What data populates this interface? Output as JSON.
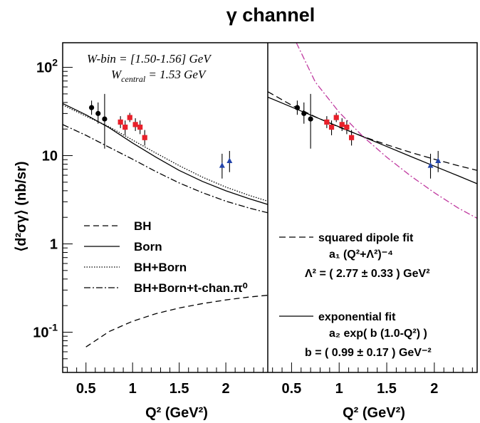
{
  "chart_data": {
    "type": "scatter",
    "title": "γ channel",
    "ylabel": "⟨d²σγ⟩ (nb/sr)",
    "xlabel": "Q² (GeV²)",
    "yscale": "log",
    "xlim": [
      0.25,
      2.45
    ],
    "ylim": [
      0.035,
      190
    ],
    "x_ticks": [
      "0.5",
      "1",
      "1.5",
      "2"
    ],
    "y_ticks": [
      "10⁻¹",
      "1",
      "10",
      "10²"
    ],
    "annotation": {
      "wbin": "W-bin = [1.50-1.56] GeV",
      "wcentral_prefix": "W",
      "wcentral_sub": "central",
      "wcentral_value": " = 1.53 GeV"
    },
    "data_series": [
      {
        "marker": "circle",
        "color": "#000000",
        "points": [
          {
            "x": 0.56,
            "y": 35,
            "lo": 29,
            "hi": 42
          },
          {
            "x": 0.63,
            "y": 30,
            "lo": 23,
            "hi": 40
          },
          {
            "x": 0.7,
            "y": 26,
            "lo": 12,
            "hi": 50
          }
        ]
      },
      {
        "marker": "square",
        "color": "#e8202a",
        "points": [
          {
            "x": 0.87,
            "y": 24,
            "lo": 20.5,
            "hi": 28
          },
          {
            "x": 0.92,
            "y": 21,
            "lo": 17,
            "hi": 25
          },
          {
            "x": 0.97,
            "y": 27,
            "lo": 24,
            "hi": 30.5
          },
          {
            "x": 1.03,
            "y": 22.5,
            "lo": 19,
            "hi": 26.5
          },
          {
            "x": 1.08,
            "y": 21,
            "lo": 17.5,
            "hi": 25
          },
          {
            "x": 1.13,
            "y": 16,
            "lo": 13,
            "hi": 19.5
          }
        ]
      },
      {
        "marker": "triangle",
        "color": "#2244aa",
        "points": [
          {
            "x": 1.96,
            "y": 7.7,
            "lo": 5.5,
            "hi": 10.5
          },
          {
            "x": 2.04,
            "y": 8.7,
            "lo": 6.5,
            "hi": 11.3
          }
        ]
      }
    ],
    "left_panel": {
      "curves": [
        {
          "name": "BH",
          "dash": "8,5",
          "points": [
            [
              0.5,
              0.068
            ],
            [
              0.75,
              0.102
            ],
            [
              1.0,
              0.133
            ],
            [
              1.25,
              0.162
            ],
            [
              1.5,
              0.188
            ],
            [
              1.75,
              0.211
            ],
            [
              2.0,
              0.232
            ],
            [
              2.25,
              0.25
            ],
            [
              2.45,
              0.262
            ]
          ]
        },
        {
          "name": "Born",
          "dash": "",
          "points": [
            [
              0.25,
              39
            ],
            [
              0.5,
              29
            ],
            [
              0.75,
              20.7
            ],
            [
              1.0,
              13.9
            ],
            [
              1.25,
              9.6
            ],
            [
              1.5,
              6.8
            ],
            [
              1.75,
              5.1
            ],
            [
              2.0,
              4.0
            ],
            [
              2.25,
              3.25
            ],
            [
              2.45,
              2.8
            ]
          ]
        },
        {
          "name": "BH+Born",
          "dash": "1.5,2",
          "points": [
            [
              0.25,
              37.5
            ],
            [
              0.5,
              28
            ],
            [
              0.75,
              21.2
            ],
            [
              1.0,
              15.0
            ],
            [
              1.25,
              10.7
            ],
            [
              1.5,
              7.7
            ],
            [
              1.75,
              5.7
            ],
            [
              2.0,
              4.4
            ],
            [
              2.25,
              3.55
            ],
            [
              2.45,
              3.05
            ]
          ]
        },
        {
          "name": "BH+Born+t-chan.π⁰",
          "dash": "9,3,2,3",
          "points": [
            [
              0.25,
              22.5
            ],
            [
              0.5,
              17.0
            ],
            [
              0.75,
              12.4
            ],
            [
              1.0,
              9.1
            ],
            [
              1.25,
              6.6
            ],
            [
              1.5,
              4.9
            ],
            [
              1.75,
              3.8
            ],
            [
              2.0,
              3.05
            ],
            [
              2.25,
              2.55
            ],
            [
              2.45,
              2.25
            ]
          ]
        }
      ]
    },
    "right_panel": {
      "curves": [
        {
          "name": "squared dipole fit",
          "dash": "9,5",
          "points": [
            [
              0.25,
              53
            ],
            [
              0.5,
              37.3
            ],
            [
              0.75,
              27.5
            ],
            [
              1.0,
              21.0
            ],
            [
              1.25,
              16.5
            ],
            [
              1.5,
              13.3
            ],
            [
              1.75,
              10.9
            ],
            [
              2.0,
              9.1
            ],
            [
              2.25,
              7.7
            ],
            [
              2.45,
              6.8
            ]
          ]
        },
        {
          "name": "exponential fit",
          "dash": "",
          "points": [
            [
              0.25,
              46
            ],
            [
              0.5,
              35.5
            ],
            [
              0.75,
              27.4
            ],
            [
              1.0,
              21.2
            ],
            [
              1.25,
              16.4
            ],
            [
              1.5,
              12.7
            ],
            [
              1.75,
              9.8
            ],
            [
              2.0,
              7.6
            ],
            [
              2.25,
              5.9
            ],
            [
              2.45,
              4.8
            ]
          ]
        },
        {
          "name": "",
          "dash": "9,3,2,3",
          "color": "#c03aa0",
          "points": [
            [
              0.55,
              190
            ],
            [
              0.75,
              68
            ],
            [
              1.0,
              31
            ],
            [
              1.25,
              16.5
            ],
            [
              1.5,
              9.6
            ],
            [
              1.75,
              5.9
            ],
            [
              2.0,
              3.8
            ],
            [
              2.25,
              2.55
            ],
            [
              2.45,
              1.95
            ]
          ]
        }
      ]
    },
    "left_legend": [
      {
        "label": "BH",
        "dash": "8,5"
      },
      {
        "label": "Born",
        "dash": ""
      },
      {
        "label": "BH+Born",
        "dash": "1.5,2"
      },
      {
        "label": "BH+Born+t-chan.π⁰",
        "dash": "9,3,2,3"
      }
    ],
    "right_legend": {
      "dipole_label": "squared dipole fit",
      "dipole_formula": "a₁ (Q²+Λ²)⁻⁴",
      "dipole_result": "Λ² = ( 2.77 ± 0.33 ) GeV²",
      "exp_label": "exponential fit",
      "exp_formula": "a₂ exp( b (1.0-Q²) )",
      "exp_result": "b = ( 0.99 ± 0.17 )  GeV⁻²"
    }
  }
}
